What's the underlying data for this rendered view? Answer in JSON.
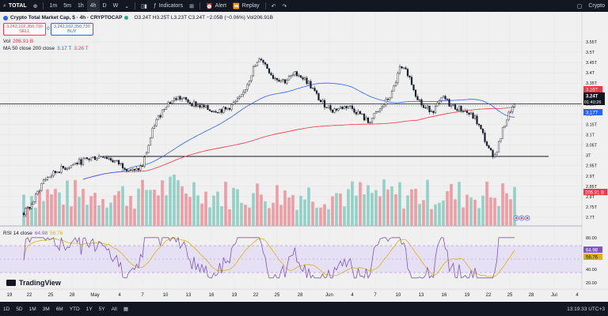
{
  "toolbar": {
    "symbol": "TOTAL",
    "intervals": [
      "1m",
      "5m",
      "1h",
      "4h",
      "D",
      "W"
    ],
    "active_interval": "4h",
    "indicators_label": "Indicators",
    "alert_label": "Alert",
    "replay_label": "Replay",
    "right_label": "Crypto"
  },
  "legend": {
    "title": "Crypto Total Market Cap, $ · 4h · CRYPTOCAP",
    "ohlc": "O3.24T H3.25T L3.23T C3.24T −2.05B (−0.06%) Vol206.91B",
    "sell_price": "3,242,102,350,730",
    "sell_label": "SELL",
    "spread": "0",
    "buy_price": "3,242,102,350,730",
    "buy_label": "BUY",
    "vol_label": "Vol",
    "vol_value": "206.91 B",
    "ma_label": "MA 50 close 200 close",
    "ma_value_1": "3.17 T",
    "ma_value_2": "3.26 T"
  },
  "price_axis": {
    "ticks": [
      "3.55T",
      "3.5T",
      "3.45T",
      "3.4T",
      "3.35T",
      "3.3T",
      "3.25T",
      "3.2T",
      "3.15T",
      "3.1T",
      "3.05T",
      "3T",
      "2.95T",
      "2.9T",
      "2.85T",
      "2.8T",
      "2.75T",
      "2.7T"
    ],
    "label_ma200": "3.26T",
    "label_price": "3.24T",
    "label_countdown": "01:40:26",
    "label_ma50": "3.17T",
    "label_volume": "206.91 B"
  },
  "rsi": {
    "title": "RSI 14 close",
    "value_1": "64.98",
    "value_2": "56.76",
    "ticks": [
      "80.00",
      "60.00",
      "40.00",
      "20.00"
    ],
    "label_rsi": "64.98",
    "label_ma": "56.76"
  },
  "time_axis": {
    "labels": [
      "19",
      "22",
      "25",
      "28",
      "May",
      "4",
      "7",
      "10",
      "13",
      "16",
      "19",
      "22",
      "25",
      "28",
      "Jun",
      "4",
      "7",
      "10",
      "13",
      "16",
      "19",
      "22",
      "25",
      "28",
      "Jul",
      "4"
    ]
  },
  "brand": "TradingView",
  "bottombar": {
    "ranges": [
      "1D",
      "5D",
      "1M",
      "3M",
      "6M",
      "YTD",
      "1Y",
      "5Y",
      "All"
    ],
    "clock": "13:19:33 UTC+3"
  },
  "colors": {
    "up": "#22ab94",
    "down": "#f23645",
    "ma50": "#2962ff",
    "ma200": "#f23645",
    "rsi": "#7e57c2",
    "rsi_ma": "#d9b21a"
  }
}
